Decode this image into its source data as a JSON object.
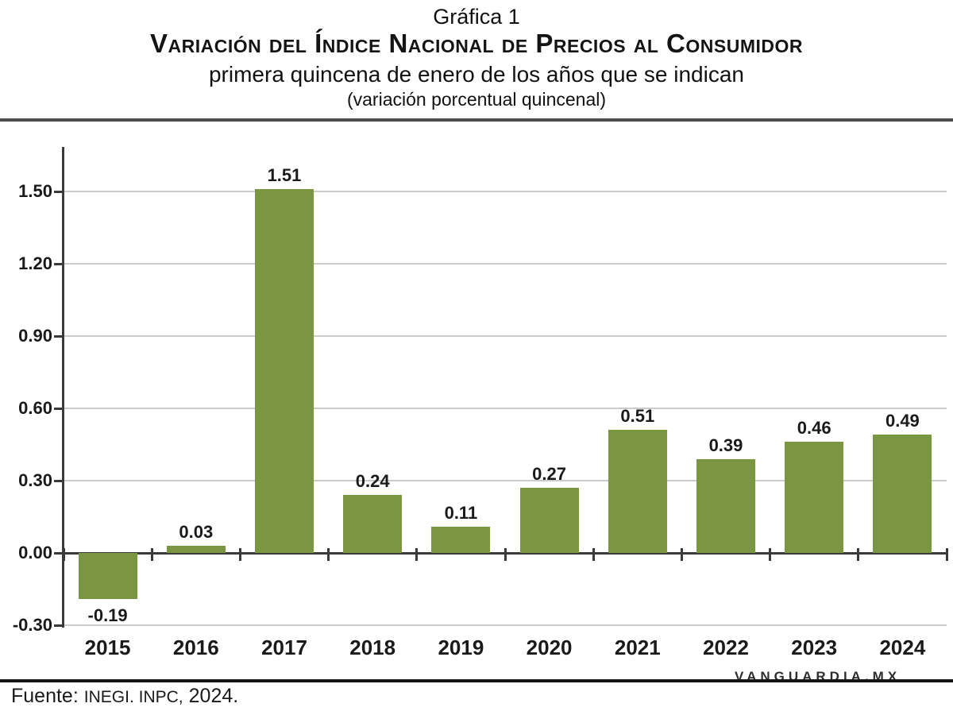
{
  "header": {
    "line1": "Gráfica 1",
    "line2": "Variación del Índice Nacional de Precios al Consumidor",
    "line3": "primera quincena de enero de los años que se indican",
    "line4": "(variación porcentual quincenal)"
  },
  "chart_data": {
    "type": "bar",
    "title": "Variación del Índice Nacional de Precios al Consumidor",
    "subtitle": "primera quincena de enero de los años que se indican",
    "unit_note": "(variación porcentual quincenal)",
    "categories": [
      "2015",
      "2016",
      "2017",
      "2018",
      "2019",
      "2020",
      "2021",
      "2022",
      "2023",
      "2024"
    ],
    "values": [
      -0.19,
      0.03,
      1.51,
      0.24,
      0.11,
      0.27,
      0.51,
      0.39,
      0.46,
      0.49
    ],
    "value_labels": [
      "-0.19",
      "0.03",
      "1.51",
      "0.24",
      "0.11",
      "0.27",
      "0.51",
      "0.39",
      "0.46",
      "0.49"
    ],
    "xlabel": "",
    "ylabel": "",
    "ylim": [
      -0.3,
      1.5
    ],
    "yticks": [
      -0.3,
      0.0,
      0.3,
      0.6,
      0.9,
      1.2,
      1.5
    ],
    "ytick_labels": [
      "-0.30",
      "0.00",
      "0.30",
      "0.60",
      "0.90",
      "1.20",
      "1.50"
    ],
    "grid": true,
    "legend": "none",
    "bar_color": "#7b9642",
    "grid_color": "#cbcbcb",
    "axis_color": "#3a3a3a"
  },
  "source": {
    "prefix": "Fuente:",
    "agency": "INEGI. INPC,",
    "year": "2024."
  },
  "watermark": "VANGUARDIA.MX"
}
